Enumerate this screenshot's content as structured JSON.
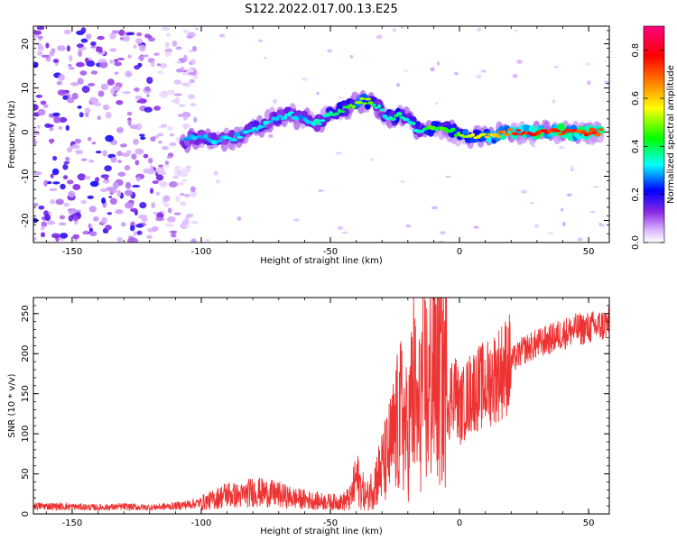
{
  "title": "S122.2022.017.00.13.E25",
  "chart_data": [
    {
      "type": "heatmap",
      "title": "",
      "xlabel": "Height of straight line (km)",
      "ylabel": "Frequency (Hz)",
      "xlim": [
        -165,
        58
      ],
      "ylim": [
        -25,
        24
      ],
      "xticks": [
        -150,
        -100,
        -50,
        0,
        50
      ],
      "xtick_labels": [
        "-150",
        "-100",
        "-50",
        "0",
        "50"
      ],
      "yticks": [
        -20,
        -10,
        0,
        10,
        20
      ],
      "ytick_labels": [
        "-20",
        "-10",
        "0",
        "10",
        "20"
      ],
      "grid": false,
      "noise_region_x": [
        -165,
        -108
      ],
      "ridge": {
        "x": [
          -107,
          -100,
          -93,
          -86,
          -79,
          -72,
          -66,
          -60,
          -55,
          -50,
          -46,
          -42,
          -38,
          -35,
          -32,
          -29,
          -26,
          -23,
          -20,
          -17,
          -14,
          -11,
          -8,
          -5,
          -2,
          1,
          5,
          9,
          13,
          17,
          25,
          35,
          45,
          55
        ],
        "y": [
          -2,
          -1,
          -2,
          -1,
          1,
          3,
          4,
          3,
          2,
          4,
          5,
          6,
          7,
          7,
          6,
          4,
          3,
          4,
          3,
          1,
          0,
          1,
          1,
          1,
          0,
          -1,
          -1,
          -1,
          -1,
          0,
          0,
          0,
          0,
          0
        ],
        "amplitude": [
          0.3,
          0.33,
          0.34,
          0.33,
          0.35,
          0.34,
          0.35,
          0.3,
          0.36,
          0.38,
          0.4,
          0.48,
          0.55,
          0.5,
          0.38,
          0.36,
          0.4,
          0.42,
          0.36,
          0.38,
          0.4,
          0.5,
          0.48,
          0.46,
          0.48,
          0.55,
          0.62,
          0.58,
          0.66,
          0.72,
          0.8,
          0.82,
          0.8,
          0.78
        ]
      },
      "colorbar": {
        "label": "Normalized spectral amplitude",
        "range": [
          0.0,
          0.9
        ],
        "ticks": [
          0.0,
          0.2,
          0.4,
          0.6,
          0.8
        ],
        "tick_labels": [
          "0.0",
          "0.2",
          "0.4",
          "0.6",
          "0.8"
        ],
        "colors": [
          "#ffffff",
          "#8a2be2",
          "#0000ff",
          "#00ffff",
          "#00ff00",
          "#ffff00",
          "#ff8000",
          "#ff0000",
          "#ff0080"
        ]
      }
    },
    {
      "type": "line",
      "title": "",
      "xlabel": "Height of straight line (km)",
      "ylabel": "SNR (10 * v/v)",
      "xlim": [
        -165,
        58
      ],
      "ylim": [
        0,
        270
      ],
      "xticks": [
        -150,
        -100,
        -50,
        0,
        50
      ],
      "xtick_labels": [
        "-150",
        "-100",
        "-50",
        "0",
        "50"
      ],
      "yticks": [
        0,
        50,
        100,
        150,
        200,
        250
      ],
      "ytick_labels": [
        "0",
        "50",
        "100",
        "150",
        "200",
        "250"
      ],
      "grid": false,
      "series": [
        {
          "name": "",
          "color": "#ee3333",
          "x": [
            -165,
            -150,
            -140,
            -130,
            -120,
            -110,
            -100,
            -95,
            -90,
            -85,
            -80,
            -75,
            -70,
            -65,
            -60,
            -55,
            -50,
            -45,
            -42,
            -40,
            -36,
            -32,
            -28,
            -24,
            -22,
            -20,
            -18,
            -16,
            -14,
            -12,
            -10,
            -8,
            -6,
            -4,
            -2,
            0,
            5,
            10,
            15,
            20,
            25,
            30,
            35,
            40,
            45,
            50,
            55,
            58
          ],
          "y": [
            10,
            9,
            8,
            9,
            8,
            10,
            14,
            18,
            25,
            22,
            28,
            26,
            24,
            20,
            18,
            16,
            15,
            15,
            20,
            45,
            20,
            45,
            70,
            110,
            125,
            90,
            160,
            110,
            180,
            140,
            200,
            170,
            175,
            140,
            160,
            130,
            155,
            160,
            175,
            190,
            205,
            212,
            218,
            225,
            230,
            232,
            235,
            238
          ]
        }
      ]
    }
  ]
}
